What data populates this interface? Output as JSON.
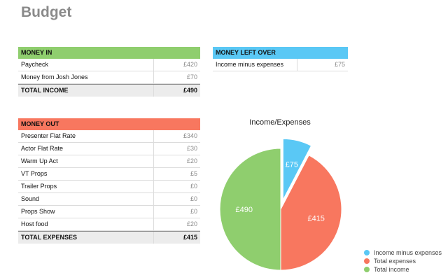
{
  "page": {
    "title": "Budget"
  },
  "colors": {
    "green": "#8fce6e",
    "blue": "#5ac8f5",
    "red": "#f8775f"
  },
  "money_in": {
    "header": "MONEY IN",
    "rows": [
      {
        "label": "Paycheck",
        "value": "£420"
      },
      {
        "label": "Money from Josh Jones",
        "value": "£70"
      }
    ],
    "total": {
      "label": "TOTAL INCOME",
      "value": "£490"
    }
  },
  "money_left": {
    "header": "MONEY LEFT OVER",
    "rows": [
      {
        "label": "Income minus expenses",
        "value": "£75"
      }
    ]
  },
  "money_out": {
    "header": "MONEY OUT",
    "rows": [
      {
        "label": "Presenter Flat Rate",
        "value": "£340"
      },
      {
        "label": "Actor Flat Rate",
        "value": "£30"
      },
      {
        "label": "Warm Up Act",
        "value": "£20"
      },
      {
        "label": "VT Props",
        "value": "£5"
      },
      {
        "label": "Trailer Props",
        "value": "£0"
      },
      {
        "label": "Sound",
        "value": "£0"
      },
      {
        "label": "Props Show",
        "value": "£0"
      },
      {
        "label": "Host food",
        "value": "£20"
      }
    ],
    "total": {
      "label": "TOTAL EXPENSES",
      "value": "£415"
    }
  },
  "chart_data": {
    "type": "pie",
    "title": "Income/Expenses",
    "slices": [
      {
        "name": "Income minus expenses",
        "value": 75,
        "label": "£75",
        "color": "#5ac8f5",
        "exploded": true
      },
      {
        "name": "Total expenses",
        "value": 415,
        "label": "£415",
        "color": "#f8775f",
        "exploded": false
      },
      {
        "name": "Total income",
        "value": 490,
        "label": "£490",
        "color": "#8fce6e",
        "exploded": false
      }
    ],
    "legend": [
      "Income minus expenses",
      "Total expenses",
      "Total income"
    ],
    "legend_position": "bottom-right"
  }
}
